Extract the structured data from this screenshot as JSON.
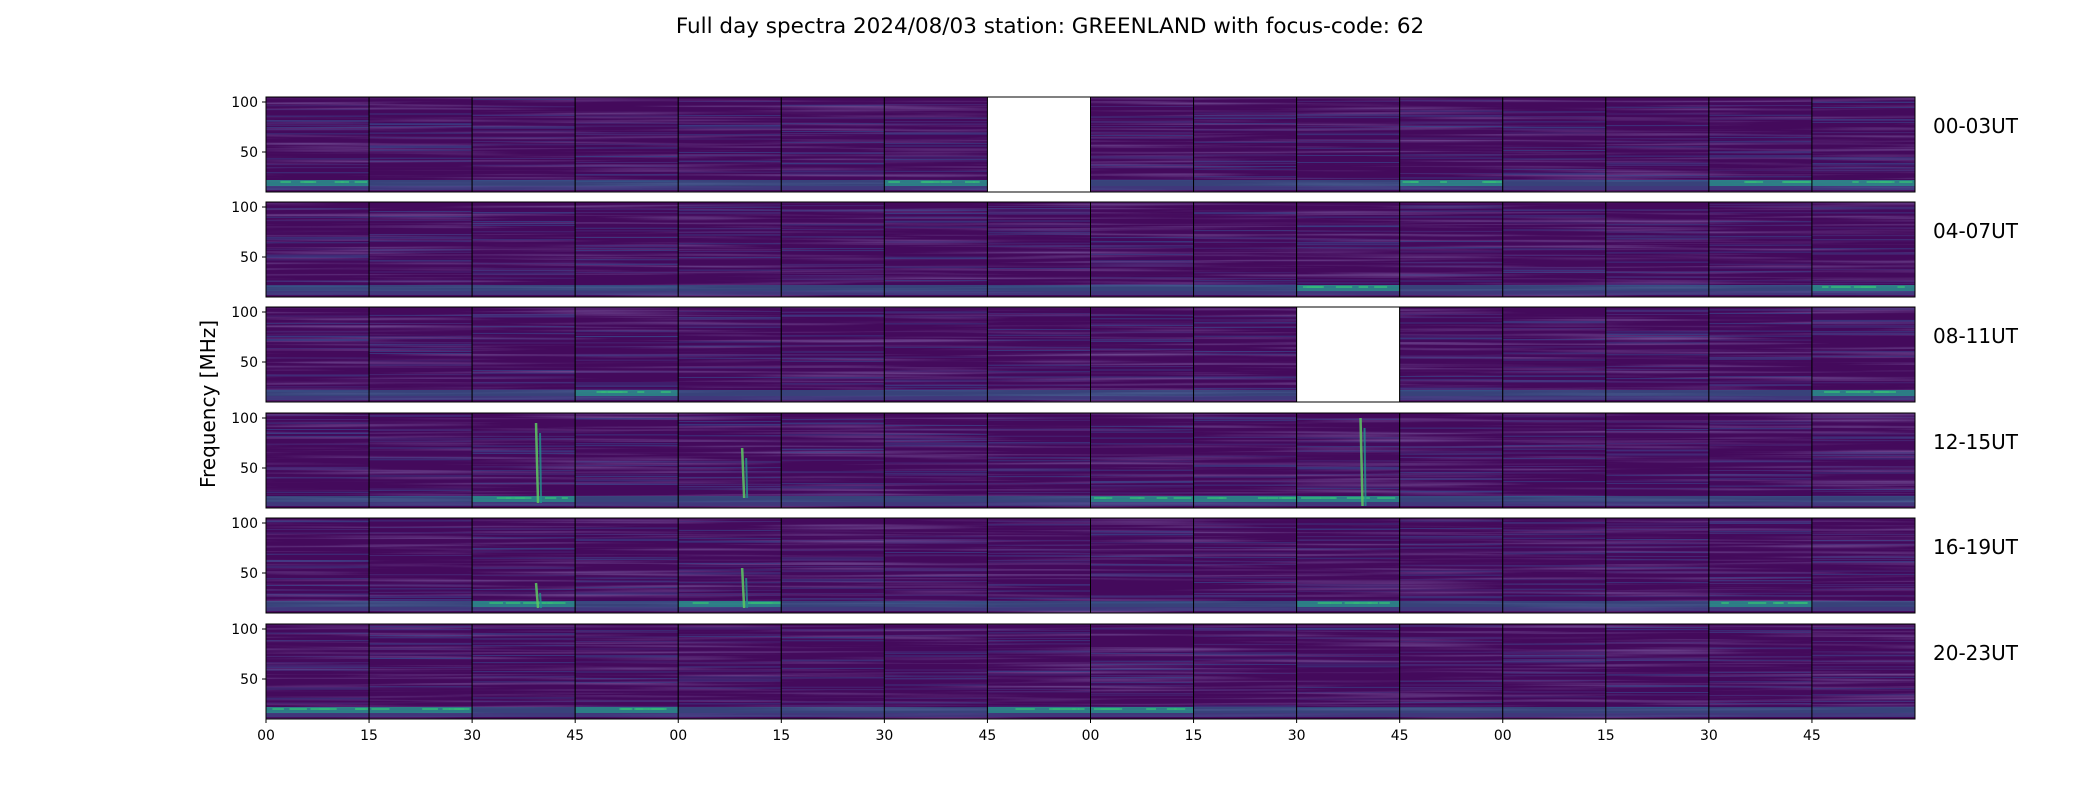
{
  "chart_data": {
    "type": "heatmap",
    "title": "Full day spectra 2024/08/03 station: GREENLAND with focus-code: 62",
    "ylabel": "Frequency [MHz]",
    "ylim": [
      10,
      105
    ],
    "y_ticks": [
      "100",
      "50"
    ],
    "x_ticks": [
      "00",
      "15",
      "30",
      "45",
      "00",
      "15",
      "30",
      "45",
      "00",
      "15",
      "30",
      "45",
      "00",
      "15",
      "30",
      "45"
    ],
    "colormap": "viridis",
    "panels_per_row": 16,
    "panel_minutes": 15,
    "rows": [
      {
        "label": "00-03UT",
        "missing_panels": [
          7
        ],
        "bright_panels": [
          0,
          6,
          11,
          14,
          15
        ]
      },
      {
        "label": "04-07UT",
        "missing_panels": [],
        "bright_panels": [
          10,
          15
        ]
      },
      {
        "label": "08-11UT",
        "missing_panels": [
          10
        ],
        "bright_panels": [
          3,
          15
        ]
      },
      {
        "label": "12-15UT",
        "missing_panels": [],
        "bright_panels": [
          2,
          8,
          9,
          10
        ]
      },
      {
        "label": "16-19UT",
        "missing_panels": [],
        "bright_panels": [
          2,
          4,
          10,
          14
        ]
      },
      {
        "label": "20-23UT",
        "missing_panels": [],
        "bright_panels": [
          0,
          1,
          3,
          7,
          8
        ]
      }
    ],
    "bursts": [
      {
        "row": 3,
        "panel": 2,
        "freq_range": [
          15,
          95
        ]
      },
      {
        "row": 3,
        "panel": 4,
        "freq_range": [
          20,
          70
        ]
      },
      {
        "row": 3,
        "panel": 10,
        "freq_range": [
          12,
          100
        ]
      },
      {
        "row": 4,
        "panel": 2,
        "freq_range": [
          15,
          40
        ]
      },
      {
        "row": 4,
        "panel": 4,
        "freq_range": [
          15,
          55
        ]
      }
    ]
  }
}
